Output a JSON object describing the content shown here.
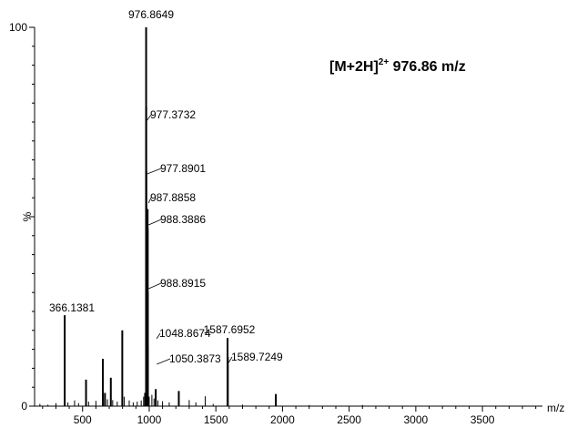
{
  "chart_data": {
    "type": "bar",
    "title_main": "[M+2H]",
    "title_sup": "2+",
    "title_rest": " 976.86 m/z",
    "xlabel": "m/z",
    "ylabel": "%",
    "xlim": [
      140,
      3950
    ],
    "ylim": [
      0,
      100
    ],
    "x_ticks": [
      500,
      1000,
      1500,
      2000,
      2500,
      3000,
      3500
    ],
    "y_ticks": [
      0,
      100
    ],
    "peaks": [
      {
        "mz": 180,
        "intensity": 0.6
      },
      {
        "mz": 240,
        "intensity": 0.4
      },
      {
        "mz": 300,
        "intensity": 0.8
      },
      {
        "mz": 366.1381,
        "intensity": 24,
        "label": "366.1381"
      },
      {
        "mz": 390,
        "intensity": 1
      },
      {
        "mz": 440,
        "intensity": 1.5
      },
      {
        "mz": 470,
        "intensity": 0.8
      },
      {
        "mz": 526,
        "intensity": 7
      },
      {
        "mz": 545,
        "intensity": 1.2
      },
      {
        "mz": 600,
        "intensity": 1.4
      },
      {
        "mz": 652,
        "intensity": 12.5
      },
      {
        "mz": 668,
        "intensity": 3.5
      },
      {
        "mz": 686,
        "intensity": 1.8
      },
      {
        "mz": 712,
        "intensity": 7.5
      },
      {
        "mz": 726,
        "intensity": 1.6
      },
      {
        "mz": 760,
        "intensity": 1.2
      },
      {
        "mz": 798,
        "intensity": 20
      },
      {
        "mz": 812,
        "intensity": 2.5
      },
      {
        "mz": 850,
        "intensity": 1.5
      },
      {
        "mz": 880,
        "intensity": 1
      },
      {
        "mz": 910,
        "intensity": 1.2
      },
      {
        "mz": 940,
        "intensity": 1.5
      },
      {
        "mz": 958,
        "intensity": 2.5
      },
      {
        "mz": 969,
        "intensity": 3.5
      },
      {
        "mz": 976.8649,
        "intensity": 100,
        "label": "976.8649"
      },
      {
        "mz": 977.3732,
        "intensity": 79,
        "label": "977.3732"
      },
      {
        "mz": 977.8901,
        "intensity": 62,
        "label": "977.8901"
      },
      {
        "mz": 978.4,
        "intensity": 38
      },
      {
        "mz": 978.9,
        "intensity": 22
      },
      {
        "mz": 979.4,
        "intensity": 10
      },
      {
        "mz": 987.8858,
        "intensity": 52,
        "label": "987.8858"
      },
      {
        "mz": 988.3886,
        "intensity": 47,
        "label": "988.3886"
      },
      {
        "mz": 988.8915,
        "intensity": 30,
        "label": "988.8915"
      },
      {
        "mz": 989.4,
        "intensity": 16
      },
      {
        "mz": 989.9,
        "intensity": 7
      },
      {
        "mz": 1000,
        "intensity": 2.5
      },
      {
        "mz": 1020,
        "intensity": 3
      },
      {
        "mz": 1036,
        "intensity": 2
      },
      {
        "mz": 1048.8674,
        "intensity": 4.5,
        "label": "1048.8674"
      },
      {
        "mz": 1050.3873,
        "intensity": 1.8,
        "label": "1050.3873"
      },
      {
        "mz": 1065,
        "intensity": 1.5
      },
      {
        "mz": 1100,
        "intensity": 1.3
      },
      {
        "mz": 1150,
        "intensity": 1
      },
      {
        "mz": 1222,
        "intensity": 4
      },
      {
        "mz": 1300,
        "intensity": 1.6
      },
      {
        "mz": 1350,
        "intensity": 1
      },
      {
        "mz": 1420,
        "intensity": 2.6
      },
      {
        "mz": 1480,
        "intensity": 0.6
      },
      {
        "mz": 1587.6952,
        "intensity": 18,
        "label": "1587.6952"
      },
      {
        "mz": 1589.7249,
        "intensity": 13,
        "label": "1589.7249"
      },
      {
        "mz": 1700,
        "intensity": 0.4
      },
      {
        "mz": 1950,
        "intensity": 3.2
      },
      {
        "mz": 2200,
        "intensity": 0.3
      },
      {
        "mz": 2600,
        "intensity": 0.3
      }
    ]
  }
}
